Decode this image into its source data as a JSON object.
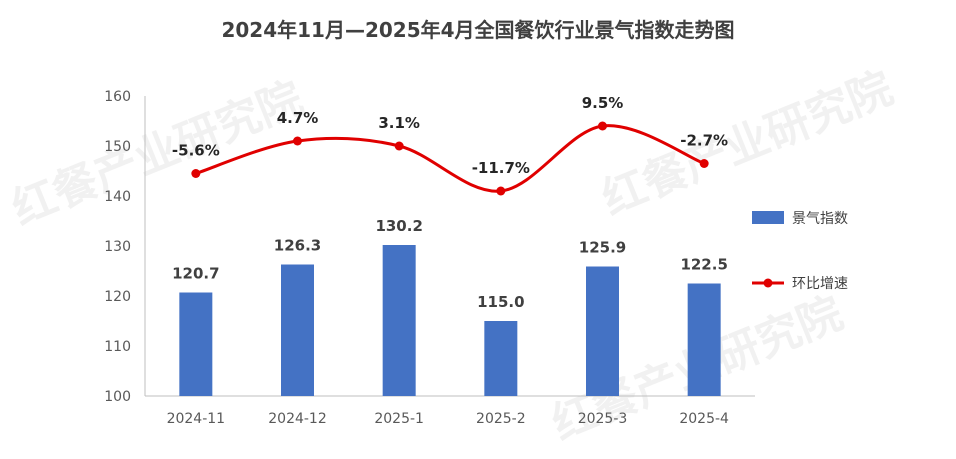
{
  "chart_data": {
    "type": "bar",
    "title": "2024年11月—2025年4月全国餐饮行业景气指数走势图",
    "categories": [
      "2024-11",
      "2024-12",
      "2025-1",
      "2025-2",
      "2025-3",
      "2025-4"
    ],
    "ylim": [
      100,
      160
    ],
    "yticks": [
      100,
      110,
      120,
      130,
      140,
      150,
      160
    ],
    "series": [
      {
        "name": "景气指数",
        "type": "bar",
        "color": "#4472c4",
        "values": [
          120.7,
          126.3,
          130.2,
          115.0,
          125.9,
          122.5
        ],
        "labels": [
          "120.7",
          "126.3",
          "130.2",
          "115.0",
          "125.9",
          "122.5"
        ]
      },
      {
        "name": "环比增速",
        "type": "line",
        "color": "#e00000",
        "values": [
          -5.6,
          4.7,
          3.1,
          -11.7,
          9.5,
          -2.7
        ],
        "labels": [
          "-5.6%",
          "4.7%",
          "3.1%",
          "-11.7%",
          "9.5%",
          "-2.7%"
        ],
        "plot_positions_on_left_axis": [
          144.5,
          151,
          150,
          141,
          154,
          146.5
        ]
      }
    ],
    "legend_position": "right",
    "grid": false
  },
  "watermark": "红餐产业研究院"
}
